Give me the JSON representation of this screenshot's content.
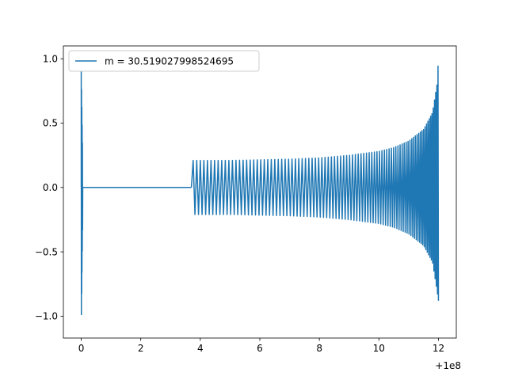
{
  "chart_data": {
    "type": "line",
    "title": "",
    "xlabel": "",
    "ylabel": "",
    "x_offset_label": "+1e8",
    "xlim": [
      -0.6,
      12.6
    ],
    "ylim": [
      -1.17,
      1.1
    ],
    "grid": false,
    "legend_placement": "upper left",
    "x_ticks": [
      0,
      2,
      4,
      6,
      8,
      10,
      12
    ],
    "x_tick_labels": [
      "0",
      "2",
      "4",
      "6",
      "8",
      "10",
      "12"
    ],
    "y_ticks": [
      -1.0,
      -0.5,
      0.0,
      0.5,
      1.0
    ],
    "y_tick_labels": [
      "−1.0",
      "−0.5",
      "0.0",
      "0.5",
      "1.0"
    ],
    "series": [
      {
        "name": "m = 30.519027998524695",
        "color": "#1f77b4",
        "segments": [
          {
            "kind": "burst",
            "x": [
              0.0,
              0.05
            ],
            "y_min": -1.07,
            "y_max": 0.9
          },
          {
            "kind": "flat",
            "x": [
              0.05,
              3.7
            ],
            "y": 0.0
          },
          {
            "kind": "chirp",
            "x": [
              3.7,
              12.0
            ],
            "envelope_x": [
              3.7,
              5,
              6,
              7,
              8,
              9,
              10,
              10.5,
              11,
              11.5,
              11.8,
              11.95,
              12.0
            ],
            "envelope_upper": [
              0.21,
              0.21,
              0.215,
              0.22,
              0.23,
              0.25,
              0.28,
              0.31,
              0.36,
              0.45,
              0.58,
              0.8,
              1.0
            ],
            "envelope_lower": [
              -0.21,
              -0.21,
              -0.215,
              -0.22,
              -0.23,
              -0.25,
              -0.28,
              -0.31,
              -0.36,
              -0.45,
              -0.58,
              -0.8,
              -0.88
            ]
          }
        ]
      }
    ],
    "colors": {
      "line": "#1f77b4",
      "axes": "#000000",
      "legend_border": "#cccccc"
    }
  }
}
